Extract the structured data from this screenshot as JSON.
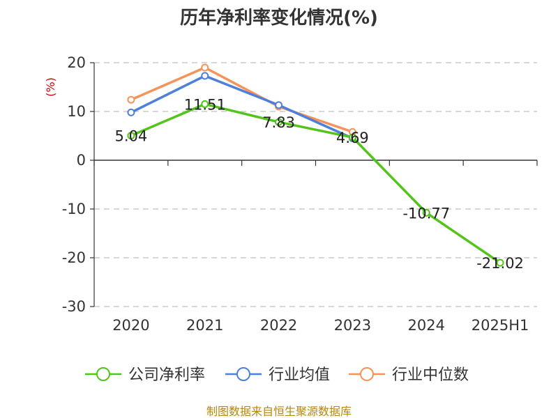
{
  "chart_data": {
    "type": "line",
    "title": "历年净利率变化情况(%)",
    "ylabel": "(%)",
    "xlabel": "",
    "categories": [
      "2020",
      "2021",
      "2022",
      "2023",
      "2024",
      "2025H1"
    ],
    "ylim": [
      -30,
      20
    ],
    "yticks": [
      20,
      10,
      0,
      -10,
      -20,
      -30
    ],
    "grid": true,
    "legend_position": "bottom",
    "series": [
      {
        "name": "公司净利率",
        "color": "#52c41a",
        "values": [
          5.04,
          11.51,
          7.83,
          4.69,
          -10.77,
          -21.02
        ],
        "labels": [
          "5.04",
          "11.51",
          "7.83",
          "4.69",
          "-10.77",
          "-21.02"
        ]
      },
      {
        "name": "行业均值",
        "color": "#4e7fd9",
        "values": [
          9.8,
          17.3,
          11.3,
          4.5,
          null,
          null
        ]
      },
      {
        "name": "行业中位数",
        "color": "#f5935a",
        "values": [
          12.4,
          19.0,
          11.0,
          5.8,
          null,
          null
        ]
      }
    ]
  },
  "source": "制图数据来自恒生聚源数据库"
}
